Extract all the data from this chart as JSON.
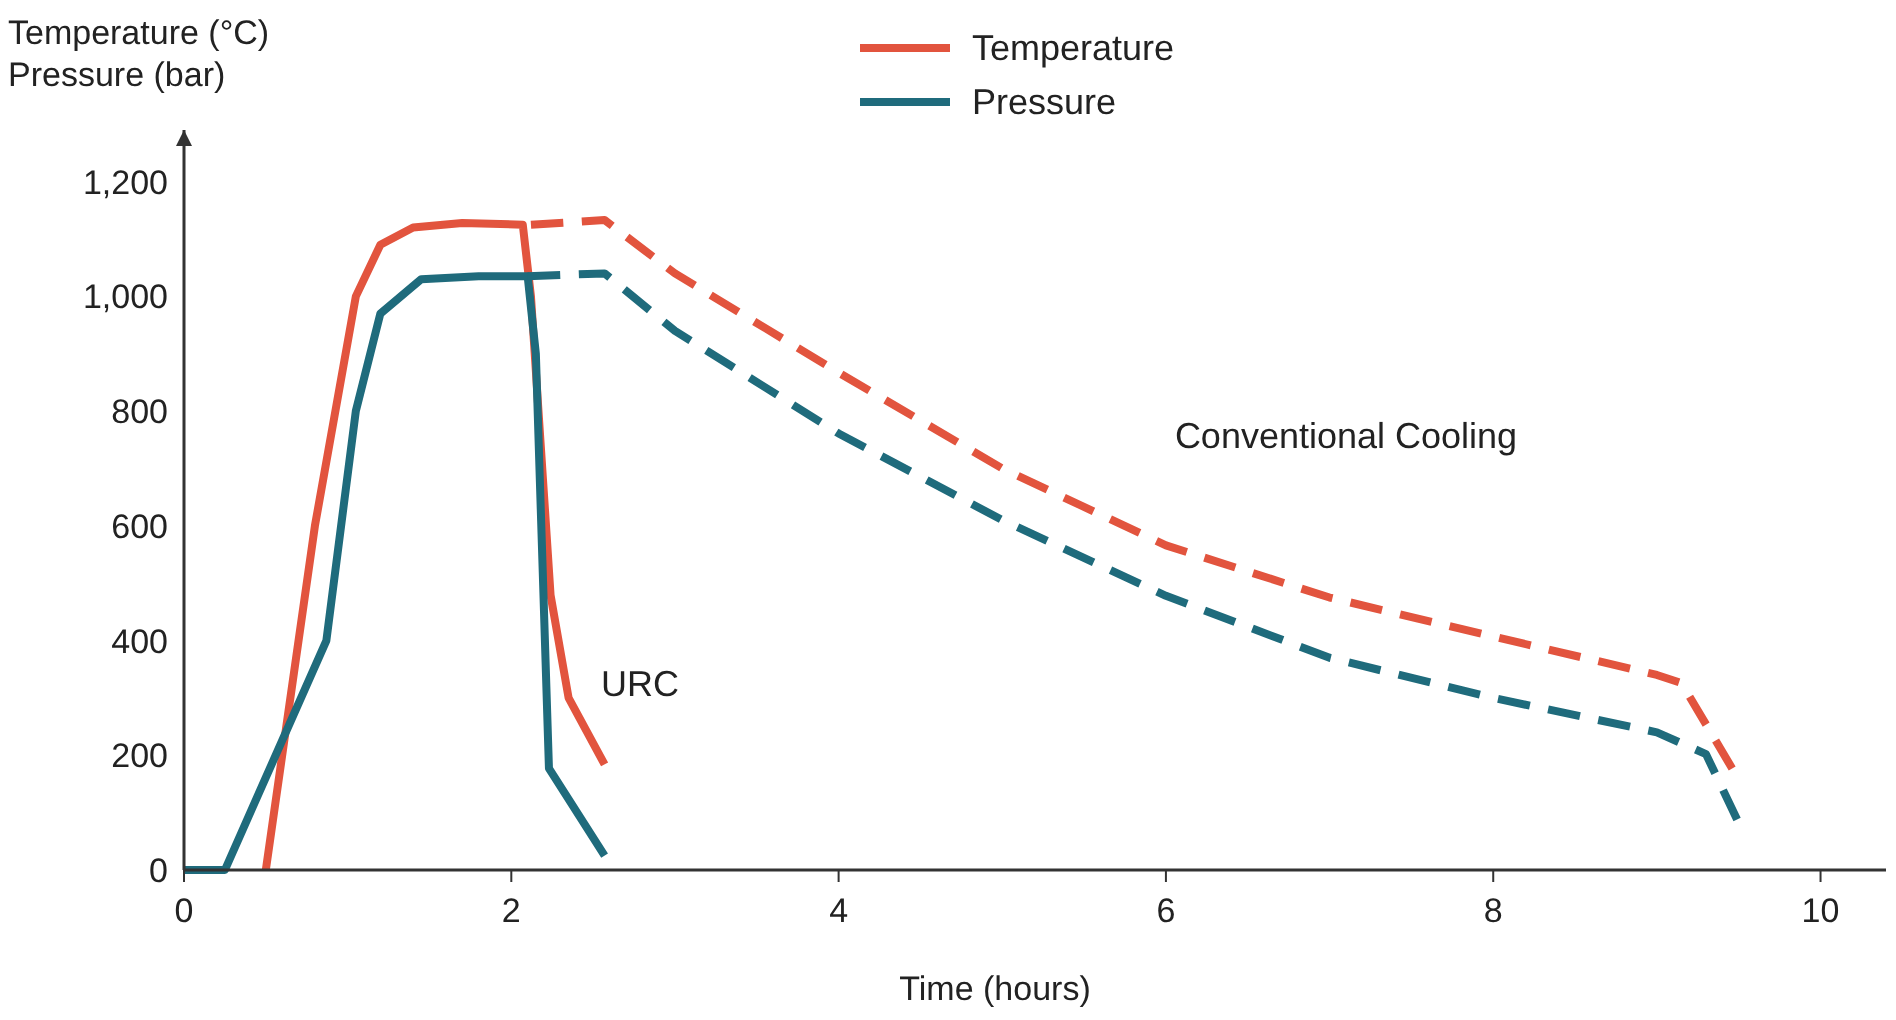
{
  "chart_data": {
    "type": "line",
    "xlabel": "Time (hours)",
    "ylabel": "Temperature (°C)\nPressure (bar)",
    "xlim": [
      0,
      10.4
    ],
    "ylim": [
      0,
      1290
    ],
    "xticks": [
      0,
      2,
      4,
      6,
      8,
      10
    ],
    "yticks": [
      0,
      200,
      400,
      600,
      800,
      {
        "value": 1000,
        "label": "1,000"
      },
      {
        "value": 1200,
        "label": "1,200"
      }
    ],
    "grid": false,
    "legend": "top",
    "marker": "none",
    "series": [
      {
        "name": "Temperature",
        "color": "#e2543e",
        "line_style": "solid",
        "x": [
          0.5,
          0.8,
          1.05,
          1.2,
          1.4,
          1.7,
          2.07,
          2.12,
          2.24,
          2.35,
          2.57
        ],
        "values": [
          0,
          600,
          1000,
          1090,
          1120,
          1128,
          1125,
          1000,
          479,
          300,
          184
        ]
      },
      {
        "name": "Pressure",
        "color": "#1f6b7c",
        "line_style": "solid",
        "x": [
          0,
          0.25,
          0.87,
          1.05,
          1.2,
          1.45,
          1.8,
          2.1,
          2.15,
          2.23,
          2.57
        ],
        "values": [
          0,
          0,
          400,
          800,
          970,
          1030,
          1035,
          1035,
          900,
          177,
          25
        ]
      },
      {
        "color": "#e2543e",
        "line_style": "dashed",
        "x": [
          2.12,
          2.57,
          3.0,
          4,
          5,
          6,
          7,
          8,
          9,
          9.15,
          9.46
        ],
        "values": [
          1125,
          1133,
          1040,
          867,
          700,
          566,
          475,
          407,
          340,
          326,
          177
        ]
      },
      {
        "color": "#1f6b7c",
        "line_style": "dashed",
        "x": [
          2.1,
          2.57,
          3.0,
          4,
          5,
          6,
          7,
          8,
          9,
          9.3,
          9.49
        ],
        "values": [
          1035,
          1040,
          940,
          761,
          610,
          478,
          370,
          300,
          240,
          202,
          88
        ]
      }
    ],
    "annotations": [
      "Conventional Cooling",
      "URC"
    ]
  }
}
